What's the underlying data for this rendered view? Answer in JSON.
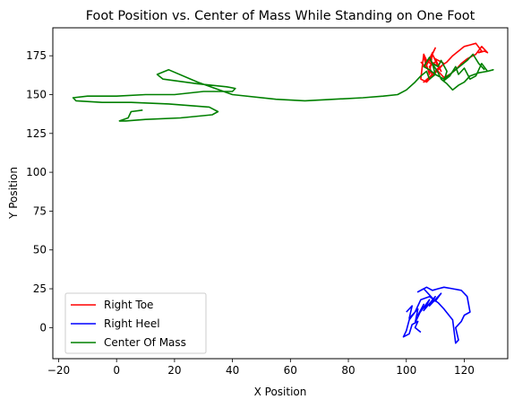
{
  "chart_data": {
    "type": "line",
    "title": "Foot Position vs. Center of Mass While Standing on One Foot",
    "xlabel": "X Position",
    "ylabel": "Y Position",
    "xlim": [
      -22,
      135
    ],
    "ylim": [
      -20,
      193
    ],
    "xticks": [
      -20,
      0,
      20,
      40,
      60,
      80,
      100,
      120
    ],
    "yticks": [
      0,
      25,
      50,
      75,
      100,
      125,
      150,
      175
    ],
    "grid": false,
    "legend": "lower-left",
    "series": [
      {
        "name": "Right Toe",
        "color": "#ff0000",
        "x": [
          105,
          107,
          106,
          108,
          109,
          107,
          110,
          108,
          111,
          109,
          112,
          110,
          113,
          108,
          106,
          109,
          111,
          114,
          116,
          118,
          120,
          122,
          124,
          126,
          125,
          127,
          128,
          126,
          124,
          121,
          119,
          117,
          115,
          113,
          111,
          109,
          107,
          106,
          105,
          107,
          109,
          108,
          110
        ],
        "y": [
          171,
          167,
          175,
          163,
          177,
          169,
          180,
          172,
          168,
          176,
          165,
          173,
          170,
          160,
          158,
          163,
          167,
          171,
          175,
          178,
          181,
          182,
          183,
          178,
          177,
          178,
          177,
          181,
          176,
          173,
          170,
          166,
          163,
          161,
          165,
          169,
          172,
          176,
          160,
          158,
          162,
          168,
          171
        ]
      },
      {
        "name": "Right Heel",
        "color": "#0000ff",
        "x": [
          100,
          102,
          101,
          104,
          103,
          106,
          104,
          108,
          106,
          110,
          108,
          112,
          110,
          106,
          104,
          107,
          109,
          111,
          113,
          116,
          119,
          121,
          122,
          120,
          119,
          118,
          117,
          118,
          117,
          116,
          113,
          111,
          108,
          105,
          103,
          101,
          100,
          99,
          101,
          102,
          104,
          103,
          105
        ],
        "y": [
          10,
          14,
          6,
          12,
          3,
          15,
          8,
          18,
          11,
          20,
          14,
          22,
          17,
          25,
          23,
          26,
          24,
          25,
          26,
          25,
          24,
          20,
          10,
          8,
          4,
          2,
          0,
          -8,
          -10,
          5,
          12,
          16,
          20,
          18,
          10,
          5,
          -2,
          -6,
          -4,
          2,
          4,
          0,
          -3
        ]
      },
      {
        "name": "Center Of Mass",
        "color": "#008000",
        "x": [
          9,
          5,
          4,
          1,
          3,
          10,
          22,
          33,
          35,
          32,
          18,
          5,
          -5,
          -14,
          -15,
          -10,
          0,
          10,
          20,
          30,
          40,
          41,
          38,
          28,
          16,
          14,
          18,
          28,
          40,
          55,
          65,
          75,
          85,
          92,
          97,
          100,
          103,
          105,
          107,
          108,
          110,
          109,
          111,
          112,
          114,
          113,
          115,
          117,
          118,
          120,
          122,
          124,
          126,
          128,
          130,
          128,
          125,
          122,
          120,
          118,
          116,
          114,
          112,
          111,
          110,
          109,
          108,
          107,
          106,
          108,
          110,
          113,
          115,
          117,
          119,
          121,
          123,
          125,
          127
        ],
        "y": [
          140,
          139,
          135,
          133,
          133,
          134,
          135,
          137,
          139,
          142,
          144,
          145,
          145,
          146,
          148,
          149,
          149,
          150,
          150,
          152,
          152,
          154,
          155,
          157,
          160,
          163,
          166,
          158,
          150,
          147,
          146,
          147,
          148,
          149,
          150,
          153,
          158,
          162,
          165,
          160,
          163,
          170,
          168,
          172,
          165,
          159,
          162,
          168,
          163,
          167,
          160,
          162,
          170,
          165,
          166,
          165,
          164,
          162,
          158,
          156,
          153,
          157,
          160,
          164,
          167,
          170,
          174,
          171,
          168,
          166,
          163,
          160,
          163,
          166,
          169,
          172,
          176,
          170,
          166
        ]
      }
    ]
  }
}
